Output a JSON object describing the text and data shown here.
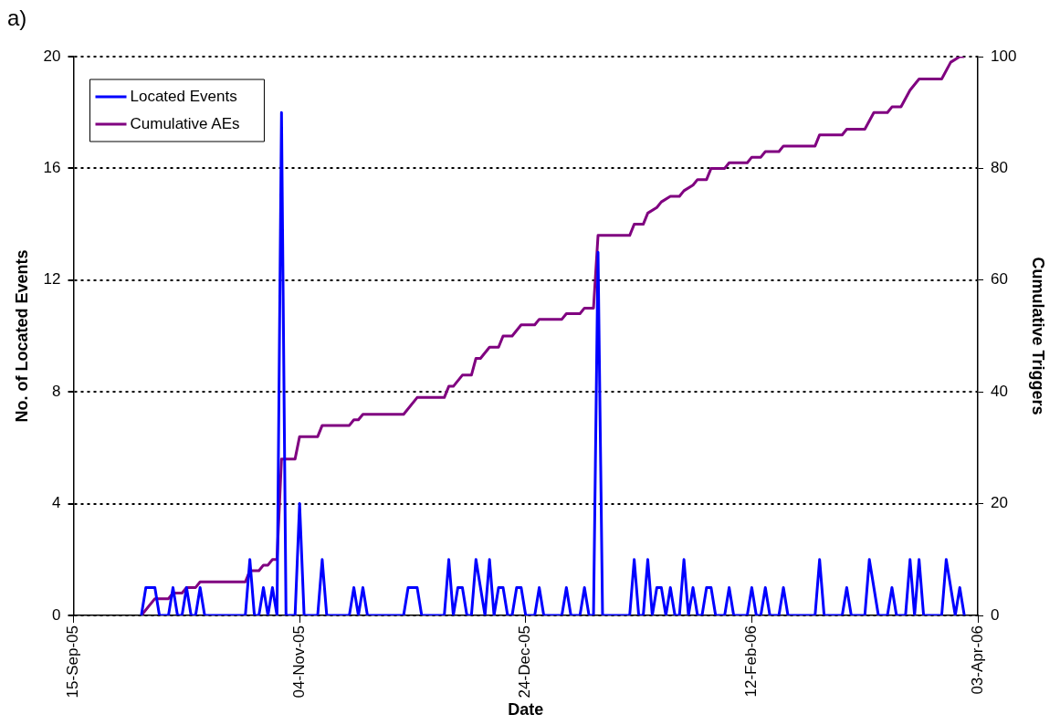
{
  "chart_data": {
    "type": "line",
    "title": "a)",
    "xlabel": "Date",
    "ylabel": "No. of Located Events",
    "y2label": "Cumulative Triggers",
    "xlim": [
      "2005-09-15",
      "2006-04-03"
    ],
    "xticks": [
      {
        "value": "2005-09-15",
        "label": "15-Sep-05"
      },
      {
        "value": "2005-11-04",
        "label": "04-Nov-05"
      },
      {
        "value": "2005-12-24",
        "label": "24-Dec-05"
      },
      {
        "value": "2006-02-12",
        "label": "12-Feb-06"
      },
      {
        "value": "2006-04-03",
        "label": "03-Apr-06"
      }
    ],
    "ylim": [
      0,
      20
    ],
    "yticks": [
      0,
      4,
      8,
      12,
      16,
      20
    ],
    "y2lim": [
      0,
      100
    ],
    "y2ticks": [
      0,
      20,
      40,
      60,
      80,
      100
    ],
    "grid": "y",
    "legend": "top left",
    "marker": "none",
    "line_style": "solid",
    "series": [
      {
        "name": "Located Events",
        "color": "#0000ff",
        "x": [
          "2005-09-30",
          "2005-10-01",
          "2005-10-03",
          "2005-10-04",
          "2005-10-06",
          "2005-10-07",
          "2005-10-08",
          "2005-10-09",
          "2005-10-10",
          "2005-10-11",
          "2005-10-12",
          "2005-10-13",
          "2005-10-14",
          "2005-10-23",
          "2005-10-24",
          "2005-10-25",
          "2005-10-26",
          "2005-10-27",
          "2005-10-28",
          "2005-10-29",
          "2005-10-30",
          "2005-10-31",
          "2005-11-01",
          "2005-11-03",
          "2005-11-04",
          "2005-11-05",
          "2005-11-08",
          "2005-11-09",
          "2005-11-10",
          "2005-11-15",
          "2005-11-16",
          "2005-11-17",
          "2005-11-18",
          "2005-11-19",
          "2005-11-27",
          "2005-11-28",
          "2005-11-30",
          "2005-12-01",
          "2005-12-06",
          "2005-12-07",
          "2005-12-08",
          "2005-12-09",
          "2005-12-10",
          "2005-12-11",
          "2005-12-12",
          "2005-12-13",
          "2005-12-15",
          "2005-12-16",
          "2005-12-17",
          "2005-12-18",
          "2005-12-19",
          "2005-12-20",
          "2005-12-21",
          "2005-12-22",
          "2005-12-23",
          "2005-12-24",
          "2005-12-26",
          "2005-12-27",
          "2005-12-28",
          "2006-01-01",
          "2006-01-02",
          "2006-01-03",
          "2006-01-05",
          "2006-01-06",
          "2006-01-07",
          "2006-01-08",
          "2006-01-09",
          "2006-01-10",
          "2006-01-16",
          "2006-01-17",
          "2006-01-18",
          "2006-01-19",
          "2006-01-20",
          "2006-01-21",
          "2006-01-22",
          "2006-01-23",
          "2006-01-24",
          "2006-01-25",
          "2006-01-26",
          "2006-01-27",
          "2006-01-28",
          "2006-01-29",
          "2006-01-30",
          "2006-01-31",
          "2006-02-01",
          "2006-02-02",
          "2006-02-03",
          "2006-02-04",
          "2006-02-06",
          "2006-02-07",
          "2006-02-08",
          "2006-02-11",
          "2006-02-12",
          "2006-02-13",
          "2006-02-14",
          "2006-02-15",
          "2006-02-16",
          "2006-02-18",
          "2006-02-19",
          "2006-02-20",
          "2006-02-26",
          "2006-02-27",
          "2006-02-28",
          "2006-03-04",
          "2006-03-05",
          "2006-03-06",
          "2006-03-09",
          "2006-03-10",
          "2006-03-12",
          "2006-03-14",
          "2006-03-15",
          "2006-03-16",
          "2006-03-18",
          "2006-03-19",
          "2006-03-20",
          "2006-03-21",
          "2006-03-22",
          "2006-03-26",
          "2006-03-27",
          "2006-03-29",
          "2006-03-30",
          "2006-03-31"
        ],
        "values": [
          0,
          1,
          1,
          0,
          0,
          1,
          0,
          0,
          1,
          0,
          0,
          1,
          0,
          0,
          2,
          0,
          0,
          1,
          0,
          1,
          0,
          18,
          0,
          0,
          4,
          0,
          0,
          2,
          0,
          0,
          1,
          0,
          1,
          0,
          0,
          1,
          1,
          0,
          0,
          2,
          0,
          1,
          1,
          0,
          0,
          2,
          0,
          2,
          0,
          1,
          1,
          0,
          0,
          1,
          1,
          0,
          0,
          1,
          0,
          0,
          1,
          0,
          0,
          1,
          0,
          0,
          13,
          0,
          0,
          2,
          0,
          0,
          2,
          0,
          1,
          1,
          0,
          1,
          0,
          0,
          2,
          0,
          1,
          0,
          0,
          1,
          1,
          0,
          0,
          1,
          0,
          0,
          1,
          0,
          0,
          1,
          0,
          0,
          1,
          0,
          0,
          2,
          0,
          0,
          1,
          0,
          0,
          2,
          0,
          0,
          1,
          0,
          0,
          2,
          0,
          2,
          0,
          0,
          2,
          0,
          1,
          0
        ]
      },
      {
        "name": "Cumulative AEs",
        "color": "#800080",
        "axis": "y2",
        "x": [
          "2005-09-30",
          "2005-10-03",
          "2005-10-06",
          "2005-10-07",
          "2005-10-09",
          "2005-10-10",
          "2005-10-12",
          "2005-10-13",
          "2005-10-23",
          "2005-10-24",
          "2005-10-26",
          "2005-10-27",
          "2005-10-28",
          "2005-10-29",
          "2005-10-30",
          "2005-10-31",
          "2005-11-03",
          "2005-11-04",
          "2005-11-08",
          "2005-11-09",
          "2005-11-15",
          "2005-11-16",
          "2005-11-17",
          "2005-11-18",
          "2005-11-27",
          "2005-11-30",
          "2005-12-06",
          "2005-12-07",
          "2005-12-08",
          "2005-12-10",
          "2005-12-12",
          "2005-12-13",
          "2005-12-14",
          "2005-12-16",
          "2005-12-18",
          "2005-12-19",
          "2005-12-21",
          "2005-12-23",
          "2005-12-26",
          "2005-12-27",
          "2006-01-01",
          "2006-01-02",
          "2006-01-05",
          "2006-01-06",
          "2006-01-08",
          "2006-01-09",
          "2006-01-16",
          "2006-01-17",
          "2006-01-19",
          "2006-01-20",
          "2006-01-22",
          "2006-01-23",
          "2006-01-25",
          "2006-01-27",
          "2006-01-28",
          "2006-01-30",
          "2006-01-31",
          "2006-02-02",
          "2006-02-03",
          "2006-02-06",
          "2006-02-07",
          "2006-02-11",
          "2006-02-12",
          "2006-02-14",
          "2006-02-15",
          "2006-02-18",
          "2006-02-19",
          "2006-02-26",
          "2006-02-27",
          "2006-03-04",
          "2006-03-05",
          "2006-03-09",
          "2006-03-11",
          "2006-03-14",
          "2006-03-15",
          "2006-03-17",
          "2006-03-19",
          "2006-03-21",
          "2006-03-26",
          "2006-03-28",
          "2006-03-30",
          "2006-03-31"
        ],
        "values": [
          0,
          3,
          3,
          4,
          4,
          5,
          5,
          6,
          6,
          8,
          8,
          9,
          9,
          10,
          10,
          28,
          28,
          32,
          32,
          34,
          34,
          35,
          35,
          36,
          36,
          39,
          39,
          41,
          41,
          43,
          43,
          46,
          46,
          48,
          48,
          50,
          50,
          52,
          52,
          53,
          53,
          54,
          54,
          55,
          55,
          68,
          68,
          70,
          70,
          72,
          73,
          74,
          75,
          75,
          76,
          77,
          78,
          78,
          80,
          80,
          81,
          81,
          82,
          82,
          83,
          83,
          84,
          84,
          86,
          86,
          87,
          87,
          90,
          90,
          91,
          91,
          94,
          96,
          96,
          99,
          100,
          100
        ]
      }
    ]
  }
}
